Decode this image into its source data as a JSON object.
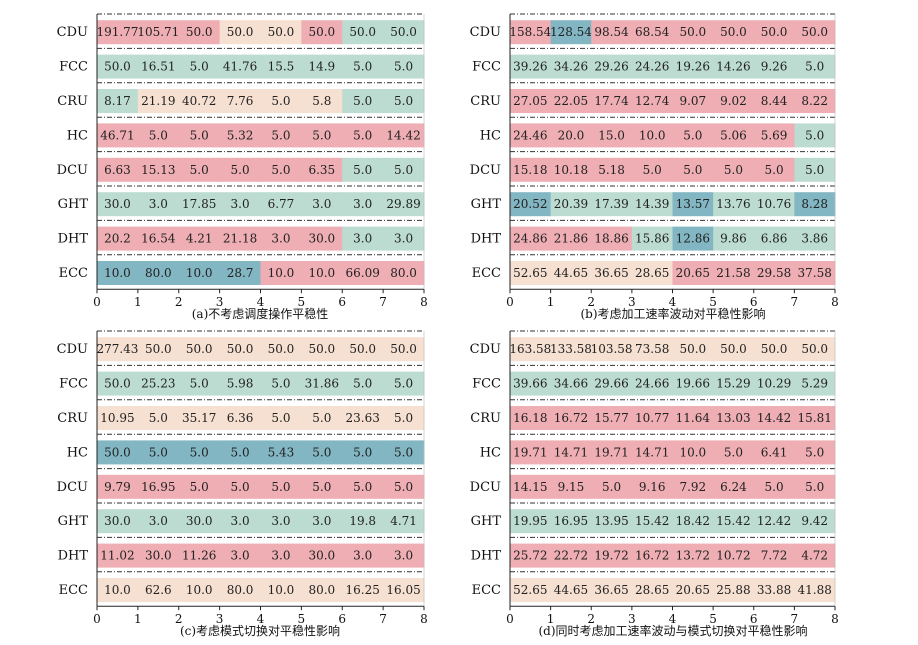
{
  "colors": {
    "pink": "#eeaeb4",
    "green": "#bcdcd2",
    "beige": "#f6e0d1",
    "blue": "#82b6c3"
  },
  "captions": [
    "(a)不考虑调度操作平稳性",
    "(b)考虑加工速率波动对平稳性影响",
    "(c)考虑模式切换对平稳性影响",
    "(d)同时考虑加工速率波动与模式切换对平稳性影响"
  ],
  "chart_data": [
    {
      "type": "table",
      "title": "(a)不考虑调度操作平稳性",
      "rows": [
        "CDU",
        "FCC",
        "CRU",
        "HC",
        "DCU",
        "GHT",
        "DHT",
        "ECC"
      ],
      "xlim": [
        0,
        8
      ],
      "xticks": [
        "0",
        "1",
        "2",
        "3",
        "4",
        "5",
        "6",
        "7",
        "8"
      ],
      "cells": [
        [
          [
            "191.77",
            "pink"
          ],
          [
            "105.71",
            "pink"
          ],
          [
            "50.0",
            "pink"
          ],
          [
            "50.0",
            "beige"
          ],
          [
            "50.0",
            "beige"
          ],
          [
            "50.0",
            "pink"
          ],
          [
            "50.0",
            "green"
          ],
          [
            "50.0",
            "green"
          ]
        ],
        [
          [
            "50.0",
            "green"
          ],
          [
            "16.51",
            "green"
          ],
          [
            "5.0",
            "green"
          ],
          [
            "41.76",
            "green"
          ],
          [
            "15.5",
            "green"
          ],
          [
            "14.9",
            "green"
          ],
          [
            "5.0",
            "green"
          ],
          [
            "5.0",
            "green"
          ]
        ],
        [
          [
            "8.17",
            "green"
          ],
          [
            "21.19",
            "beige"
          ],
          [
            "40.72",
            "beige"
          ],
          [
            "7.76",
            "beige"
          ],
          [
            "5.0",
            "beige"
          ],
          [
            "5.8",
            "beige"
          ],
          [
            "5.0",
            "green"
          ],
          [
            "5.0",
            "green"
          ]
        ],
        [
          [
            "46.71",
            "pink"
          ],
          [
            "5.0",
            "pink"
          ],
          [
            "5.0",
            "pink"
          ],
          [
            "5.32",
            "pink"
          ],
          [
            "5.0",
            "pink"
          ],
          [
            "5.0",
            "pink"
          ],
          [
            "5.0",
            "pink"
          ],
          [
            "14.42",
            "pink"
          ]
        ],
        [
          [
            "6.63",
            "pink"
          ],
          [
            "15.13",
            "pink"
          ],
          [
            "5.0",
            "pink"
          ],
          [
            "5.0",
            "pink"
          ],
          [
            "5.0",
            "pink"
          ],
          [
            "6.35",
            "pink"
          ],
          [
            "5.0",
            "green"
          ],
          [
            "5.0",
            "green"
          ]
        ],
        [
          [
            "30.0",
            "green"
          ],
          [
            "3.0",
            "green"
          ],
          [
            "17.85",
            "green"
          ],
          [
            "3.0",
            "green"
          ],
          [
            "6.77",
            "green"
          ],
          [
            "3.0",
            "green"
          ],
          [
            "3.0",
            "green"
          ],
          [
            "29.89",
            "green"
          ]
        ],
        [
          [
            "20.2",
            "pink"
          ],
          [
            "16.54",
            "pink"
          ],
          [
            "4.21",
            "pink"
          ],
          [
            "21.18",
            "pink"
          ],
          [
            "3.0",
            "pink"
          ],
          [
            "30.0",
            "pink"
          ],
          [
            "3.0",
            "green"
          ],
          [
            "3.0",
            "green"
          ]
        ],
        [
          [
            "10.0",
            "blue"
          ],
          [
            "80.0",
            "blue"
          ],
          [
            "10.0",
            "blue"
          ],
          [
            "28.7",
            "blue"
          ],
          [
            "10.0",
            "pink"
          ],
          [
            "10.0",
            "pink"
          ],
          [
            "66.09",
            "pink"
          ],
          [
            "80.0",
            "pink"
          ]
        ]
      ]
    },
    {
      "type": "table",
      "title": "(b)考虑加工速率波动对平稳性影响",
      "rows": [
        "CDU",
        "FCC",
        "CRU",
        "HC",
        "DCU",
        "GHT",
        "DHT",
        "ECC"
      ],
      "xlim": [
        0,
        8
      ],
      "xticks": [
        "0",
        "1",
        "2",
        "3",
        "4",
        "5",
        "6",
        "7",
        "8"
      ],
      "cells": [
        [
          [
            "158.54",
            "pink"
          ],
          [
            "128.54",
            "blue"
          ],
          [
            "98.54",
            "pink"
          ],
          [
            "68.54",
            "pink"
          ],
          [
            "50.0",
            "pink"
          ],
          [
            "50.0",
            "pink"
          ],
          [
            "50.0",
            "pink"
          ],
          [
            "50.0",
            "pink"
          ]
        ],
        [
          [
            "39.26",
            "green"
          ],
          [
            "34.26",
            "green"
          ],
          [
            "29.26",
            "green"
          ],
          [
            "24.26",
            "green"
          ],
          [
            "19.26",
            "green"
          ],
          [
            "14.26",
            "green"
          ],
          [
            "9.26",
            "green"
          ],
          [
            "5.0",
            "green"
          ]
        ],
        [
          [
            "27.05",
            "pink"
          ],
          [
            "22.05",
            "pink"
          ],
          [
            "17.74",
            "pink"
          ],
          [
            "12.74",
            "pink"
          ],
          [
            "9.07",
            "pink"
          ],
          [
            "9.02",
            "pink"
          ],
          [
            "8.44",
            "pink"
          ],
          [
            "8.22",
            "pink"
          ]
        ],
        [
          [
            "24.46",
            "pink"
          ],
          [
            "20.0",
            "pink"
          ],
          [
            "15.0",
            "pink"
          ],
          [
            "10.0",
            "pink"
          ],
          [
            "5.0",
            "pink"
          ],
          [
            "5.06",
            "pink"
          ],
          [
            "5.69",
            "pink"
          ],
          [
            "5.0",
            "green"
          ]
        ],
        [
          [
            "15.18",
            "pink"
          ],
          [
            "10.18",
            "pink"
          ],
          [
            "5.18",
            "pink"
          ],
          [
            "5.0",
            "pink"
          ],
          [
            "5.0",
            "pink"
          ],
          [
            "5.0",
            "pink"
          ],
          [
            "5.0",
            "pink"
          ],
          [
            "5.0",
            "green"
          ]
        ],
        [
          [
            "20.52",
            "blue"
          ],
          [
            "20.39",
            "green"
          ],
          [
            "17.39",
            "green"
          ],
          [
            "14.39",
            "green"
          ],
          [
            "13.57",
            "blue"
          ],
          [
            "13.76",
            "green"
          ],
          [
            "10.76",
            "green"
          ],
          [
            "8.28",
            "blue"
          ]
        ],
        [
          [
            "24.86",
            "pink"
          ],
          [
            "21.86",
            "pink"
          ],
          [
            "18.86",
            "pink"
          ],
          [
            "15.86",
            "green"
          ],
          [
            "12.86",
            "blue"
          ],
          [
            "9.86",
            "green"
          ],
          [
            "6.86",
            "green"
          ],
          [
            "3.86",
            "green"
          ]
        ],
        [
          [
            "52.65",
            "beige"
          ],
          [
            "44.65",
            "beige"
          ],
          [
            "36.65",
            "beige"
          ],
          [
            "28.65",
            "beige"
          ],
          [
            "20.65",
            "pink"
          ],
          [
            "21.58",
            "pink"
          ],
          [
            "29.58",
            "pink"
          ],
          [
            "37.58",
            "pink"
          ]
        ]
      ]
    },
    {
      "type": "table",
      "title": "(c)考虑模式切换对平稳性影响",
      "rows": [
        "CDU",
        "FCC",
        "CRU",
        "HC",
        "DCU",
        "GHT",
        "DHT",
        "ECC"
      ],
      "xlim": [
        0,
        8
      ],
      "xticks": [
        "0",
        "1",
        "2",
        "3",
        "4",
        "5",
        "6",
        "7",
        "8"
      ],
      "cells": [
        [
          [
            "277.43",
            "beige"
          ],
          [
            "50.0",
            "beige"
          ],
          [
            "50.0",
            "beige"
          ],
          [
            "50.0",
            "beige"
          ],
          [
            "50.0",
            "beige"
          ],
          [
            "50.0",
            "beige"
          ],
          [
            "50.0",
            "beige"
          ],
          [
            "50.0",
            "beige"
          ]
        ],
        [
          [
            "50.0",
            "green"
          ],
          [
            "25.23",
            "green"
          ],
          [
            "5.0",
            "green"
          ],
          [
            "5.98",
            "green"
          ],
          [
            "5.0",
            "green"
          ],
          [
            "31.86",
            "green"
          ],
          [
            "5.0",
            "green"
          ],
          [
            "5.0",
            "green"
          ]
        ],
        [
          [
            "10.95",
            "beige"
          ],
          [
            "5.0",
            "beige"
          ],
          [
            "35.17",
            "beige"
          ],
          [
            "6.36",
            "beige"
          ],
          [
            "5.0",
            "beige"
          ],
          [
            "5.0",
            "beige"
          ],
          [
            "23.63",
            "beige"
          ],
          [
            "5.0",
            "beige"
          ]
        ],
        [
          [
            "50.0",
            "blue"
          ],
          [
            "5.0",
            "blue"
          ],
          [
            "5.0",
            "blue"
          ],
          [
            "5.0",
            "blue"
          ],
          [
            "5.43",
            "blue"
          ],
          [
            "5.0",
            "blue"
          ],
          [
            "5.0",
            "blue"
          ],
          [
            "5.0",
            "blue"
          ]
        ],
        [
          [
            "9.79",
            "pink"
          ],
          [
            "16.95",
            "pink"
          ],
          [
            "5.0",
            "pink"
          ],
          [
            "5.0",
            "pink"
          ],
          [
            "5.0",
            "pink"
          ],
          [
            "5.0",
            "pink"
          ],
          [
            "5.0",
            "pink"
          ],
          [
            "5.0",
            "pink"
          ]
        ],
        [
          [
            "30.0",
            "green"
          ],
          [
            "3.0",
            "green"
          ],
          [
            "30.0",
            "green"
          ],
          [
            "3.0",
            "green"
          ],
          [
            "3.0",
            "green"
          ],
          [
            "3.0",
            "green"
          ],
          [
            "19.8",
            "green"
          ],
          [
            "4.71",
            "green"
          ]
        ],
        [
          [
            "11.02",
            "pink"
          ],
          [
            "30.0",
            "pink"
          ],
          [
            "11.26",
            "pink"
          ],
          [
            "3.0",
            "pink"
          ],
          [
            "3.0",
            "pink"
          ],
          [
            "30.0",
            "pink"
          ],
          [
            "3.0",
            "pink"
          ],
          [
            "3.0",
            "pink"
          ]
        ],
        [
          [
            "10.0",
            "beige"
          ],
          [
            "62.6",
            "beige"
          ],
          [
            "10.0",
            "beige"
          ],
          [
            "80.0",
            "beige"
          ],
          [
            "10.0",
            "beige"
          ],
          [
            "80.0",
            "beige"
          ],
          [
            "16.25",
            "beige"
          ],
          [
            "16.05",
            "beige"
          ]
        ]
      ]
    },
    {
      "type": "table",
      "title": "(d)同时考虑加工速率波动与模式切换对平稳性影响",
      "rows": [
        "CDU",
        "FCC",
        "CRU",
        "HC",
        "DCU",
        "GHT",
        "DHT",
        "ECC"
      ],
      "xlim": [
        0,
        8
      ],
      "xticks": [
        "0",
        "1",
        "2",
        "3",
        "4",
        "5",
        "6",
        "7",
        "8"
      ],
      "cells": [
        [
          [
            "163.58",
            "beige"
          ],
          [
            "133.58",
            "beige"
          ],
          [
            "103.58",
            "beige"
          ],
          [
            "73.58",
            "beige"
          ],
          [
            "50.0",
            "beige"
          ],
          [
            "50.0",
            "beige"
          ],
          [
            "50.0",
            "beige"
          ],
          [
            "50.0",
            "beige"
          ]
        ],
        [
          [
            "39.66",
            "green"
          ],
          [
            "34.66",
            "green"
          ],
          [
            "29.66",
            "green"
          ],
          [
            "24.66",
            "green"
          ],
          [
            "19.66",
            "green"
          ],
          [
            "15.29",
            "green"
          ],
          [
            "10.29",
            "green"
          ],
          [
            "5.29",
            "green"
          ]
        ],
        [
          [
            "16.18",
            "pink"
          ],
          [
            "16.72",
            "pink"
          ],
          [
            "15.77",
            "pink"
          ],
          [
            "10.77",
            "pink"
          ],
          [
            "11.64",
            "pink"
          ],
          [
            "13.03",
            "pink"
          ],
          [
            "14.42",
            "pink"
          ],
          [
            "15.81",
            "pink"
          ]
        ],
        [
          [
            "19.71",
            "pink"
          ],
          [
            "14.71",
            "pink"
          ],
          [
            "19.71",
            "pink"
          ],
          [
            "14.71",
            "pink"
          ],
          [
            "10.0",
            "pink"
          ],
          [
            "5.0",
            "pink"
          ],
          [
            "6.41",
            "pink"
          ],
          [
            "5.0",
            "pink"
          ]
        ],
        [
          [
            "14.15",
            "pink"
          ],
          [
            "9.15",
            "pink"
          ],
          [
            "5.0",
            "pink"
          ],
          [
            "9.16",
            "pink"
          ],
          [
            "7.92",
            "pink"
          ],
          [
            "6.24",
            "pink"
          ],
          [
            "5.0",
            "pink"
          ],
          [
            "5.0",
            "pink"
          ]
        ],
        [
          [
            "19.95",
            "green"
          ],
          [
            "16.95",
            "green"
          ],
          [
            "13.95",
            "green"
          ],
          [
            "15.42",
            "green"
          ],
          [
            "18.42",
            "green"
          ],
          [
            "15.42",
            "green"
          ],
          [
            "12.42",
            "green"
          ],
          [
            "9.42",
            "green"
          ]
        ],
        [
          [
            "25.72",
            "pink"
          ],
          [
            "22.72",
            "pink"
          ],
          [
            "19.72",
            "pink"
          ],
          [
            "16.72",
            "pink"
          ],
          [
            "13.72",
            "pink"
          ],
          [
            "10.72",
            "pink"
          ],
          [
            "7.72",
            "pink"
          ],
          [
            "4.72",
            "pink"
          ]
        ],
        [
          [
            "52.65",
            "beige"
          ],
          [
            "44.65",
            "beige"
          ],
          [
            "36.65",
            "beige"
          ],
          [
            "28.65",
            "beige"
          ],
          [
            "20.65",
            "beige"
          ],
          [
            "25.88",
            "beige"
          ],
          [
            "33.88",
            "beige"
          ],
          [
            "41.88",
            "beige"
          ]
        ]
      ]
    }
  ]
}
